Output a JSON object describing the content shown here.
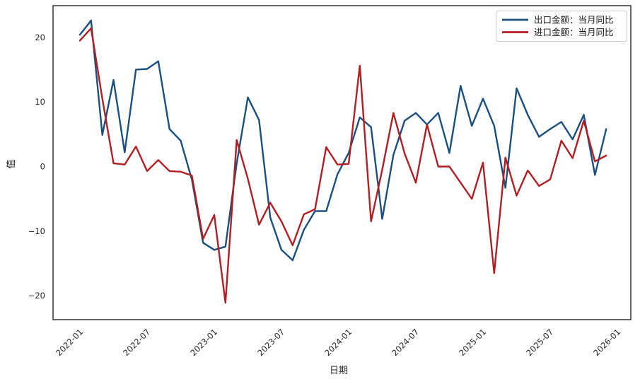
{
  "figure": {
    "background": "#ffffff"
  },
  "chart_data": {
    "type": "line",
    "title": "",
    "xlabel": "日期",
    "ylabel": "值",
    "grid": false,
    "legend_position": "upper-right",
    "axis_color": "#262626",
    "tick_label_color": "#262626",
    "x": [
      "2022-01",
      "2022-02",
      "2022-03",
      "2022-04",
      "2022-05",
      "2022-06",
      "2022-07",
      "2022-08",
      "2022-09",
      "2022-10",
      "2022-11",
      "2022-12",
      "2023-01",
      "2023-02",
      "2023-03",
      "2023-04",
      "2023-05",
      "2023-06",
      "2023-07",
      "2023-08",
      "2023-09",
      "2023-10",
      "2023-11",
      "2023-12",
      "2024-01",
      "2024-02",
      "2024-03",
      "2024-04",
      "2024-05",
      "2024-06",
      "2024-07",
      "2024-08",
      "2024-09",
      "2024-10",
      "2024-11",
      "2024-12",
      "2025-01",
      "2025-02",
      "2025-03",
      "2025-04",
      "2025-05",
      "2025-06",
      "2025-07",
      "2025-08",
      "2025-09",
      "2025-10",
      "2025-11",
      "2025-12"
    ],
    "series": [
      {
        "name": "出口金额：当月同比",
        "color": "#1b4f7e",
        "values": [
          20.4,
          22.6,
          4.9,
          13.4,
          2.2,
          15.0,
          15.1,
          16.3,
          5.8,
          4.0,
          -2.0,
          -11.8,
          -12.9,
          -12.4,
          0.5,
          10.7,
          7.2,
          -7.9,
          -12.9,
          -14.5,
          -9.8,
          -6.9,
          -6.9,
          -1.2,
          2.1,
          7.6,
          6.1,
          -8.1,
          1.8,
          7.1,
          8.3,
          6.5,
          8.3,
          2.1,
          12.5,
          6.3,
          10.5,
          6.3,
          -3.3,
          12.1,
          8.0,
          4.6,
          5.8,
          6.9,
          4.2,
          8.0,
          -1.3,
          5.8
        ]
      },
      {
        "name": "进口金额：当月同比",
        "color": "#b11e23",
        "values": [
          19.5,
          21.4,
          10.5,
          0.5,
          0.3,
          3.1,
          -0.7,
          1.0,
          -0.7,
          -0.8,
          -1.4,
          -11.2,
          -7.5,
          -21.1,
          4.1,
          -1.9,
          -9.0,
          -5.6,
          -8.5,
          -12.2,
          -7.4,
          -6.6,
          3.0,
          0.3,
          0.4,
          15.6,
          -8.5,
          -0.5,
          8.3,
          2.0,
          -2.5,
          6.5,
          0.0,
          0.0,
          -2.5,
          -5.0,
          0.6,
          -16.5,
          1.4,
          -4.5,
          -0.6,
          -3.0,
          -2.0,
          4.0,
          1.3,
          7.1,
          0.8,
          1.7
        ]
      }
    ],
    "xticks": [
      "2022-01",
      "2022-07",
      "2023-01",
      "2023-07",
      "2024-01",
      "2024-07",
      "2025-01",
      "2025-07",
      "2026-01"
    ],
    "ytick_values": [
      20,
      10,
      0,
      -10,
      -20
    ],
    "ytick_labels": [
      "20",
      "10",
      "0",
      "−10",
      "−20"
    ],
    "ylim": [
      -23.7,
      24.9
    ],
    "xlim_months": [
      -2.4,
      49.2
    ]
  }
}
